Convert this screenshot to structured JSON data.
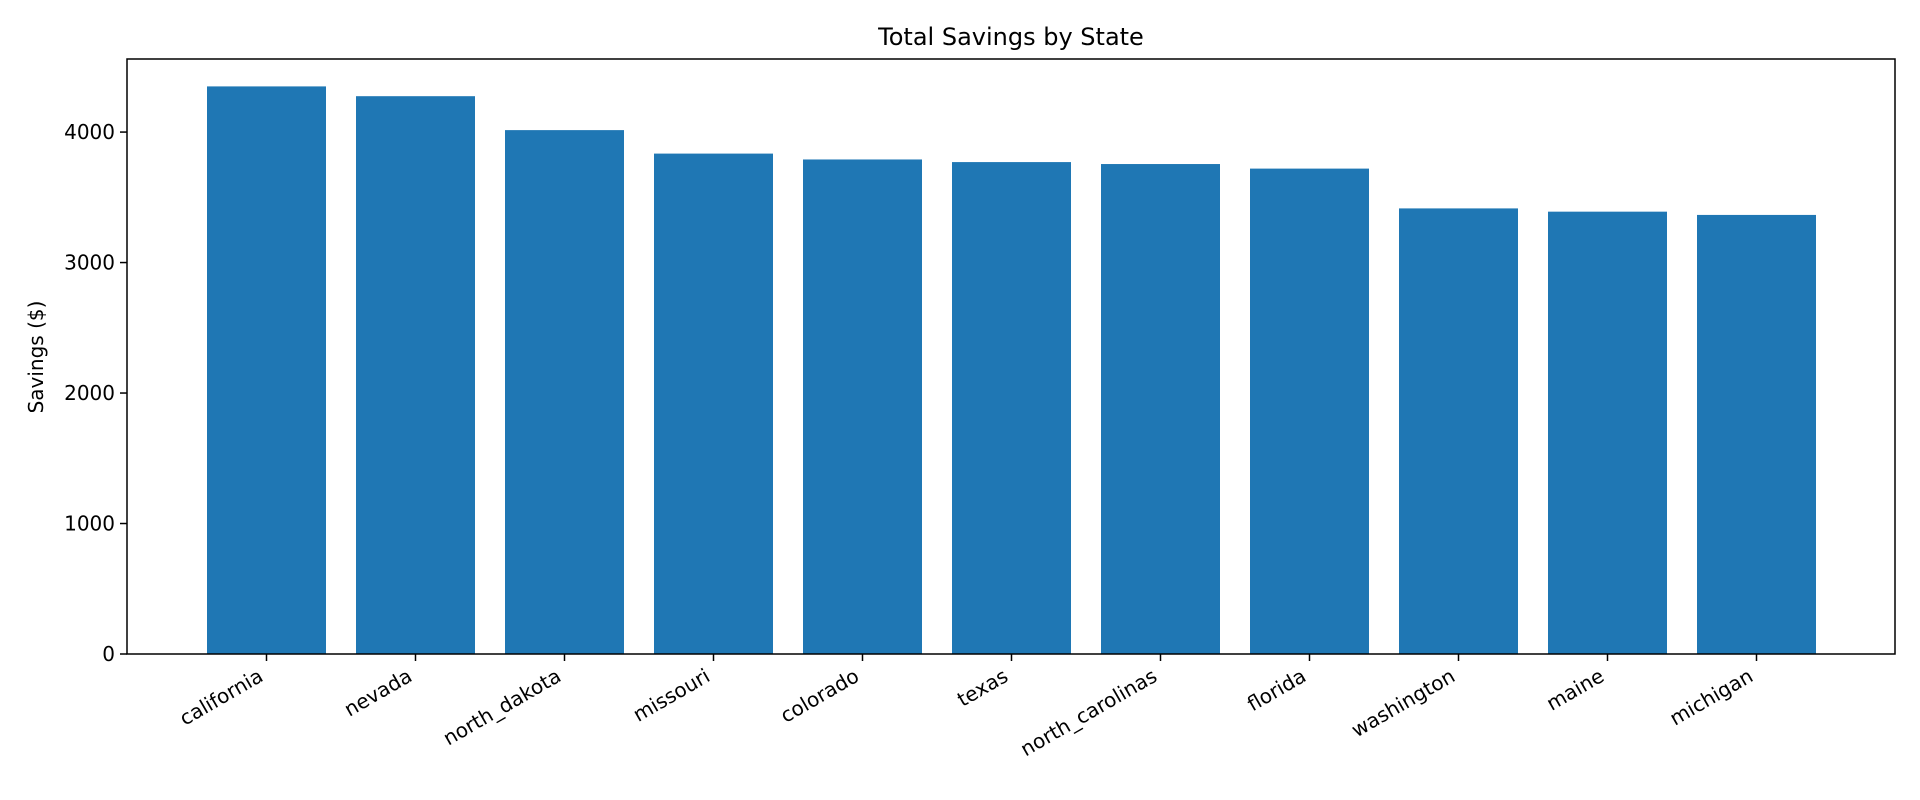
{
  "chart_data": {
    "type": "bar",
    "title": "Total Savings by State",
    "xlabel": "",
    "ylabel": "Savings ($)",
    "categories": [
      "california",
      "nevada",
      "north_dakota",
      "missouri",
      "colorado",
      "texas",
      "north_carolinas",
      "florida",
      "washington",
      "maine",
      "michigan"
    ],
    "values": [
      4350,
      4275,
      4015,
      3835,
      3790,
      3770,
      3755,
      3720,
      3415,
      3390,
      3365
    ],
    "ylim": [
      0,
      4560
    ],
    "yticks": [
      0,
      1000,
      2000,
      3000,
      4000
    ],
    "bar_color": "#1f77b4",
    "grid": false,
    "legend": "none"
  }
}
